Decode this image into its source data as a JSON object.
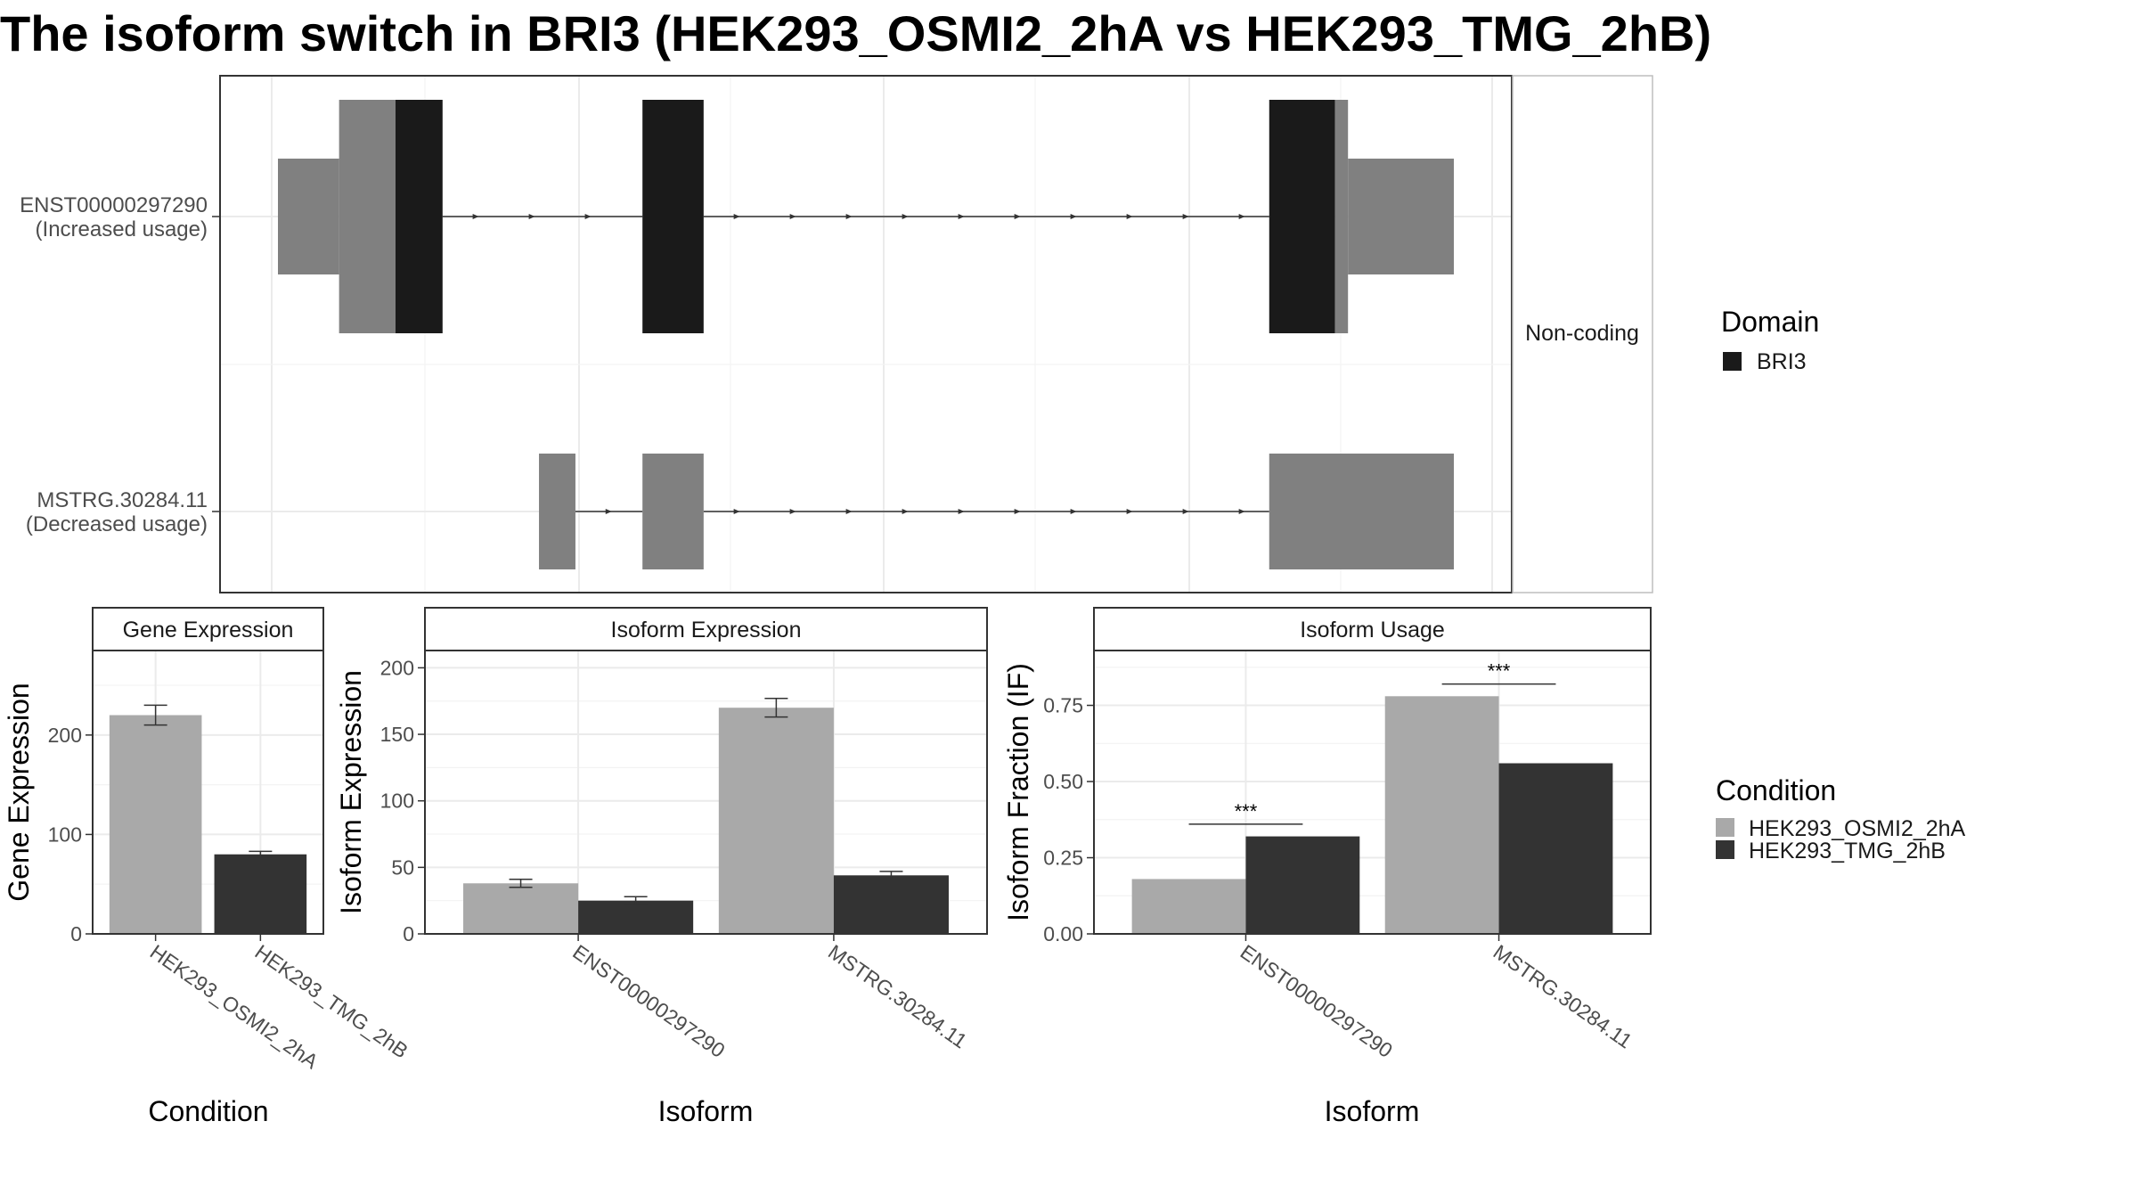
{
  "title": "The isoform switch in BRI3 (HEK293_OSMI2_2hA vs HEK293_TMG_2hB)",
  "colors": {
    "coding": "#1a1a1a",
    "noncoding": "#808080",
    "cond_a": "#a9a9a9",
    "cond_b": "#333333",
    "grid": "#ebebeb",
    "panel_border": "#333333"
  },
  "structure": {
    "strip_label": "Non-coding",
    "transcripts": [
      {
        "id": "ENST00000297290",
        "label_line1": "ENST00000297290",
        "label_line2": "(Increased usage)",
        "exons": [
          {
            "start": 0.0,
            "end": 0.052,
            "height": "utr"
          },
          {
            "start": 0.052,
            "end": 0.1,
            "height": "cds_nc"
          },
          {
            "start": 0.1,
            "end": 0.14,
            "height": "cds"
          },
          {
            "start": 0.31,
            "end": 0.362,
            "height": "cds"
          },
          {
            "start": 0.843,
            "end": 0.899,
            "height": "cds"
          },
          {
            "start": 0.899,
            "end": 0.91,
            "height": "cds_nc"
          },
          {
            "start": 0.91,
            "end": 1.0,
            "height": "utr"
          }
        ]
      },
      {
        "id": "MSTRG.30284.11",
        "label_line1": "MSTRG.30284.11",
        "label_line2": "(Decreased usage)",
        "exons": [
          {
            "start": 0.222,
            "end": 0.253,
            "height": "utr"
          },
          {
            "start": 0.31,
            "end": 0.362,
            "height": "utr"
          },
          {
            "start": 0.843,
            "end": 1.0,
            "height": "utr"
          }
        ]
      }
    ]
  },
  "legend_domain": {
    "title": "Domain",
    "items": [
      {
        "label": "BRI3",
        "color": "#1a1a1a"
      }
    ]
  },
  "legend_condition": {
    "title": "Condition",
    "items": [
      {
        "label": "HEK293_OSMI2_2hA",
        "color": "#a9a9a9"
      },
      {
        "label": "HEK293_TMG_2hB",
        "color": "#333333"
      }
    ]
  },
  "chart_data": [
    {
      "type": "bar",
      "title": "Gene Expression",
      "xlabel": "Condition",
      "ylabel": "Gene Expression",
      "categories": [
        "HEK293_OSMI2_2hA",
        "HEK293_TMG_2hB"
      ],
      "values": [
        220,
        80
      ],
      "errors": [
        10,
        3
      ],
      "ylim": [
        0,
        285
      ],
      "yticks": [
        0,
        100,
        200
      ]
    },
    {
      "type": "bar",
      "title": "Isoform Expression",
      "xlabel": "Isoform",
      "ylabel": "Isoform Expression",
      "categories": [
        "ENST00000297290",
        "MSTRG.30284.11"
      ],
      "series": [
        {
          "name": "HEK293_OSMI2_2hA",
          "values": [
            38,
            170
          ],
          "errors": [
            3,
            7
          ]
        },
        {
          "name": "HEK293_TMG_2hB",
          "values": [
            25,
            44
          ],
          "errors": [
            3,
            3
          ]
        }
      ],
      "ylim": [
        0,
        213
      ],
      "yticks": [
        0,
        50,
        100,
        150,
        200
      ]
    },
    {
      "type": "bar",
      "title": "Isoform Usage",
      "xlabel": "Isoform",
      "ylabel": "Isoform Fraction (IF)",
      "categories": [
        "ENST00000297290",
        "MSTRG.30284.11"
      ],
      "series": [
        {
          "name": "HEK293_OSMI2_2hA",
          "values": [
            0.18,
            0.78
          ]
        },
        {
          "name": "HEK293_TMG_2hB",
          "values": [
            0.32,
            0.56
          ]
        }
      ],
      "significance": [
        "***",
        "***"
      ],
      "ylim": [
        0,
        0.93
      ],
      "yticks": [
        "0.00",
        "0.25",
        "0.50",
        "0.75"
      ]
    }
  ]
}
